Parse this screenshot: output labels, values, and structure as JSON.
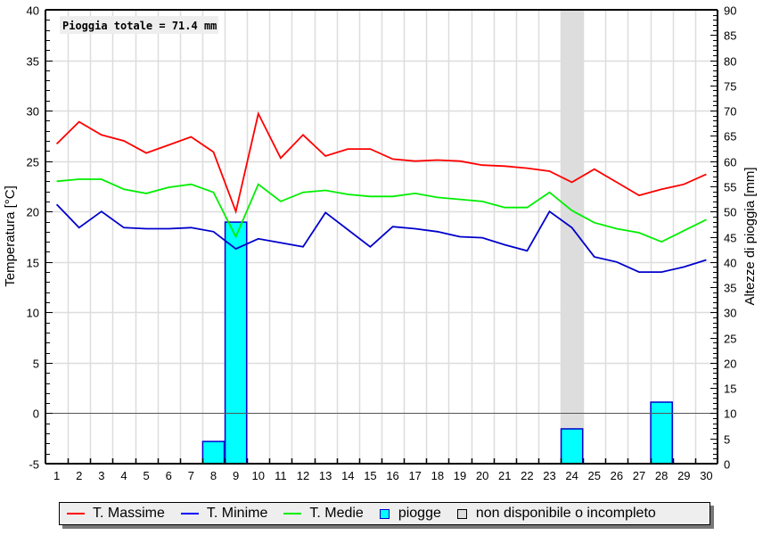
{
  "annotation": {
    "text": "Pioggia totale = 71.4 mm"
  },
  "axes": {
    "left_title": "Temperatura [°C]",
    "right_title": "Altezze di pioggia [mm]"
  },
  "legend": {
    "items": [
      {
        "label": "T. Massime",
        "kind": "line",
        "color": "#ff0000"
      },
      {
        "label": "T. Minime",
        "kind": "line",
        "color": "#0000ff"
      },
      {
        "label": "T. Medie",
        "kind": "line",
        "color": "#00ee00"
      },
      {
        "label": "piogge",
        "kind": "box",
        "color": "#00ffff"
      },
      {
        "label": "non disponibile o incompleto",
        "kind": "box",
        "color": "#dddddd"
      }
    ]
  },
  "colors": {
    "max": "#ff0000",
    "min": "#0000cc",
    "mean": "#00ee00",
    "rain_fill": "#00ffff",
    "rain_stroke": "#0000cc",
    "unavailable": "#dddddd",
    "grid": "#dddddd",
    "zero_line": "#555555"
  },
  "chart_data": {
    "type": "line",
    "title": "",
    "annotation": "Pioggia totale = 71.4 mm",
    "xlabel": "",
    "ylabel": "Temperatura [°C]",
    "y2label": "Altezze di pioggia [mm]",
    "ylim": [
      -5,
      40
    ],
    "y2lim": [
      0,
      90
    ],
    "yticks": [
      -5,
      0,
      5,
      10,
      15,
      20,
      25,
      30,
      35,
      40
    ],
    "y2ticks": [
      0,
      5,
      10,
      15,
      20,
      25,
      30,
      35,
      40,
      45,
      50,
      55,
      60,
      65,
      70,
      75,
      80,
      85,
      90
    ],
    "grid": true,
    "legend_position": "bottom",
    "x": [
      1,
      2,
      3,
      4,
      5,
      6,
      7,
      8,
      9,
      10,
      11,
      12,
      13,
      14,
      15,
      16,
      17,
      18,
      19,
      20,
      21,
      22,
      23,
      24,
      25,
      26,
      27,
      28,
      29,
      30
    ],
    "series": [
      {
        "name": "T. Massime",
        "axis": "left",
        "type": "line",
        "values": [
          26.7,
          28.9,
          27.6,
          27.0,
          25.8,
          26.6,
          27.4,
          25.9,
          20.0,
          29.7,
          25.3,
          27.6,
          25.5,
          26.2,
          26.2,
          25.2,
          25.0,
          25.1,
          25.0,
          24.6,
          24.5,
          24.3,
          24.0,
          22.9,
          24.2,
          22.9,
          21.6,
          22.2,
          22.7,
          23.7
        ]
      },
      {
        "name": "T. Minime",
        "axis": "left",
        "type": "line",
        "values": [
          20.7,
          18.4,
          20.0,
          18.4,
          18.3,
          18.3,
          18.4,
          18.0,
          16.3,
          17.3,
          16.9,
          16.5,
          19.9,
          18.2,
          16.5,
          18.5,
          18.3,
          18.0,
          17.5,
          17.4,
          16.7,
          16.1,
          20.0,
          18.4,
          15.5,
          15.0,
          14.0,
          14.0,
          14.5,
          15.2
        ]
      },
      {
        "name": "T. Medie",
        "axis": "left",
        "type": "line",
        "values": [
          23.0,
          23.2,
          23.2,
          22.2,
          21.8,
          22.4,
          22.7,
          21.9,
          17.5,
          22.7,
          21.0,
          21.9,
          22.1,
          21.7,
          21.5,
          21.5,
          21.8,
          21.4,
          21.2,
          21.0,
          20.4,
          20.4,
          21.9,
          20.1,
          18.9,
          18.3,
          17.9,
          17.0,
          18.1,
          19.2
        ]
      },
      {
        "name": "piogge",
        "axis": "right",
        "type": "bar",
        "values": [
          0,
          0,
          0,
          0,
          0,
          0,
          0,
          4.4,
          47.9,
          0,
          0,
          0,
          0,
          0,
          0,
          0,
          0,
          0,
          0,
          0,
          0,
          0,
          0,
          6.9,
          0,
          0,
          0,
          12.2,
          0,
          0
        ]
      }
    ],
    "unavailable_days": [
      24
    ]
  }
}
